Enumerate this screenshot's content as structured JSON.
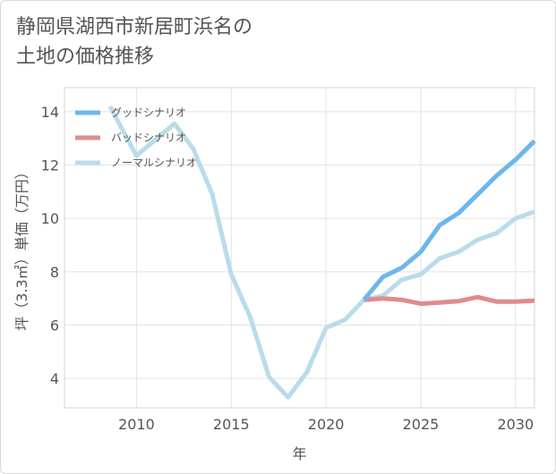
{
  "title": "静岡県湖西市新居町浜名の\n土地の価格推移",
  "chart_data": {
    "type": "line",
    "xlabel": "年",
    "ylabel": "坪（3.3㎡）単価（万円）",
    "xlim": [
      2006.2,
      2031
    ],
    "ylim": [
      2.9,
      14.9
    ],
    "xticks": [
      2010,
      2015,
      2020,
      2025,
      2030
    ],
    "yticks": [
      4,
      6,
      8,
      10,
      12,
      14
    ],
    "grid": true,
    "legend_position": "top-left",
    "series": [
      {
        "name": "グッドシナリオ",
        "color": "#6cb6ee",
        "x": [
          2022,
          2023,
          2024,
          2025,
          2026,
          2027,
          2028,
          2029,
          2030,
          2031
        ],
        "y": [
          6.95,
          7.8,
          8.15,
          8.75,
          9.75,
          10.2,
          10.9,
          11.6,
          12.2,
          12.9
        ]
      },
      {
        "name": "バッドシナリオ",
        "color": "#e08a8f",
        "x": [
          2022,
          2023,
          2024,
          2025,
          2026,
          2027,
          2028,
          2029,
          2030,
          2031
        ],
        "y": [
          6.95,
          7.0,
          6.95,
          6.8,
          6.85,
          6.9,
          7.05,
          6.88,
          6.88,
          6.92
        ]
      },
      {
        "name": "ノーマルシナリオ",
        "color": "#b9dceb",
        "x": [
          2008.6,
          2010,
          2011,
          2012,
          2013,
          2014,
          2015,
          2016,
          2017,
          2018,
          2019,
          2020,
          2021,
          2022,
          2023,
          2024,
          2025,
          2026,
          2027,
          2028,
          2029,
          2030,
          2031
        ],
        "y": [
          14.2,
          12.35,
          12.95,
          13.55,
          12.6,
          10.9,
          7.9,
          6.3,
          4.05,
          3.3,
          4.25,
          5.9,
          6.2,
          6.95,
          7.1,
          7.7,
          7.9,
          8.5,
          8.75,
          9.2,
          9.45,
          10.0,
          10.25
        ]
      }
    ]
  }
}
